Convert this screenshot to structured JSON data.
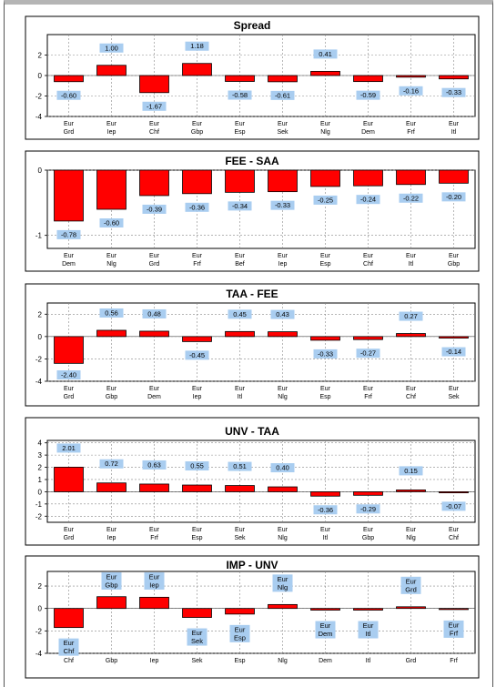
{
  "page": {
    "background": "#ffffff"
  },
  "style": {
    "bar_color": "#ff0000",
    "label_box_color": "#a9cdf0"
  },
  "chart_data": [
    {
      "type": "bar",
      "title": "Spread",
      "categories": [
        [
          "Eur",
          "Grd"
        ],
        [
          "Eur",
          "Iep"
        ],
        [
          "Eur",
          "Chf"
        ],
        [
          "Eur",
          "Gbp"
        ],
        [
          "Eur",
          "Esp"
        ],
        [
          "Eur",
          "Sek"
        ],
        [
          "Eur",
          "Nlg"
        ],
        [
          "Eur",
          "Dem"
        ],
        [
          "Eur",
          "Frf"
        ],
        [
          "Eur",
          "Itl"
        ]
      ],
      "values": [
        -0.6,
        1.0,
        -1.67,
        1.18,
        -0.58,
        -0.61,
        0.41,
        -0.59,
        -0.16,
        -0.33
      ],
      "value_labels": [
        "-0.60",
        "1.00",
        "-1.67",
        "1.18",
        "-0.58",
        "-0.61",
        "0.41",
        "-0.59",
        "-0.16",
        "-0.33"
      ],
      "ylim": [
        -4,
        4
      ],
      "yticks": [
        -4,
        -2,
        0,
        2
      ],
      "grid": true
    },
    {
      "type": "bar",
      "title": "FEE - SAA",
      "categories": [
        [
          "Eur",
          "Dem"
        ],
        [
          "Eur",
          "Nlg"
        ],
        [
          "Eur",
          "Grd"
        ],
        [
          "Eur",
          "Frf"
        ],
        [
          "Eur",
          "Bef"
        ],
        [
          "Eur",
          "Iep"
        ],
        [
          "Eur",
          "Esp"
        ],
        [
          "Eur",
          "Chf"
        ],
        [
          "Eur",
          "Itl"
        ],
        [
          "Eur",
          "Gbp"
        ]
      ],
      "values": [
        -0.78,
        -0.6,
        -0.39,
        -0.36,
        -0.34,
        -0.33,
        -0.25,
        -0.24,
        -0.22,
        -0.2
      ],
      "value_labels": [
        "-0.78",
        "-0.60",
        "-0.39",
        "-0.36",
        "-0.34",
        "-0.33",
        "-0.25",
        "-0.24",
        "-0.22",
        "-0.20"
      ],
      "ylim": [
        -1.2,
        0
      ],
      "yticks": [
        -1,
        0
      ],
      "grid": true
    },
    {
      "type": "bar",
      "title": "TAA - FEE",
      "categories": [
        [
          "Eur",
          "Grd"
        ],
        [
          "Eur",
          "Gbp"
        ],
        [
          "Eur",
          "Dem"
        ],
        [
          "Eur",
          "Iep"
        ],
        [
          "Eur",
          "Itl"
        ],
        [
          "Eur",
          "Nlg"
        ],
        [
          "Eur",
          "Esp"
        ],
        [
          "Eur",
          "Frf"
        ],
        [
          "Eur",
          "Chf"
        ],
        [
          "Eur",
          "Sek"
        ]
      ],
      "values": [
        -2.4,
        0.56,
        0.48,
        -0.45,
        0.45,
        0.43,
        -0.33,
        -0.27,
        0.27,
        -0.14
      ],
      "value_labels": [
        "-2.40",
        "0.56",
        "0.48",
        "-0.45",
        "0.45",
        "0.43",
        "-0.33",
        "-0.27",
        "0.27",
        "-0.14"
      ],
      "ylim": [
        -4,
        3
      ],
      "yticks": [
        -4,
        -2,
        0,
        2
      ],
      "grid": true
    },
    {
      "type": "bar",
      "title": "UNV - TAA",
      "categories": [
        [
          "Eur",
          "Grd"
        ],
        [
          "Eur",
          "Iep"
        ],
        [
          "Eur",
          "Frf"
        ],
        [
          "Eur",
          "Esp"
        ],
        [
          "Eur",
          "Sek"
        ],
        [
          "Eur",
          "Nlg"
        ],
        [
          "Eur",
          "Itl"
        ],
        [
          "Eur",
          "Gbp"
        ],
        [
          "Eur",
          "Nlg"
        ],
        [
          "Eur",
          "Chf"
        ]
      ],
      "values": [
        2.01,
        0.72,
        0.63,
        0.55,
        0.51,
        0.4,
        -0.36,
        -0.29,
        0.15,
        -0.07
      ],
      "value_labels": [
        "2.01",
        "0.72",
        "0.63",
        "0.55",
        "0.51",
        "0.40",
        "-0.36",
        "-0.29",
        "0.15",
        "-0.07"
      ],
      "ylim": [
        -2.5,
        4.2
      ],
      "yticks": [
        -2,
        -1,
        0,
        1,
        2,
        3,
        4
      ],
      "grid": true
    },
    {
      "type": "bar",
      "title": "IMP - UNV",
      "categories": [
        [
          "Chf"
        ],
        [
          "Gbp"
        ],
        [
          "Iep"
        ],
        [
          "Sek"
        ],
        [
          "Esp"
        ],
        [
          "Nlg"
        ],
        [
          "Dem"
        ],
        [
          "Itl"
        ],
        [
          "Grd"
        ],
        [
          "Frf"
        ]
      ],
      "values": [
        -1.7,
        1.05,
        1.0,
        -0.8,
        -0.5,
        0.35,
        -0.15,
        -0.15,
        0.15,
        -0.1
      ],
      "value_labels": [
        [
          "Eur",
          "Chf"
        ],
        [
          "Eur",
          "Gbp"
        ],
        [
          "Eur",
          "Iep"
        ],
        [
          "Eur",
          "Sek"
        ],
        [
          "Eur",
          "Esp"
        ],
        [
          "Eur",
          "Nlg"
        ],
        [
          "Eur",
          "Dem"
        ],
        [
          "Eur",
          "Itl"
        ],
        [
          "Eur",
          "Grd"
        ],
        [
          "Eur",
          "Frf"
        ]
      ],
      "ylim": [
        -4,
        3.3
      ],
      "yticks": [
        -4,
        -2,
        0,
        2
      ],
      "grid": true
    }
  ]
}
